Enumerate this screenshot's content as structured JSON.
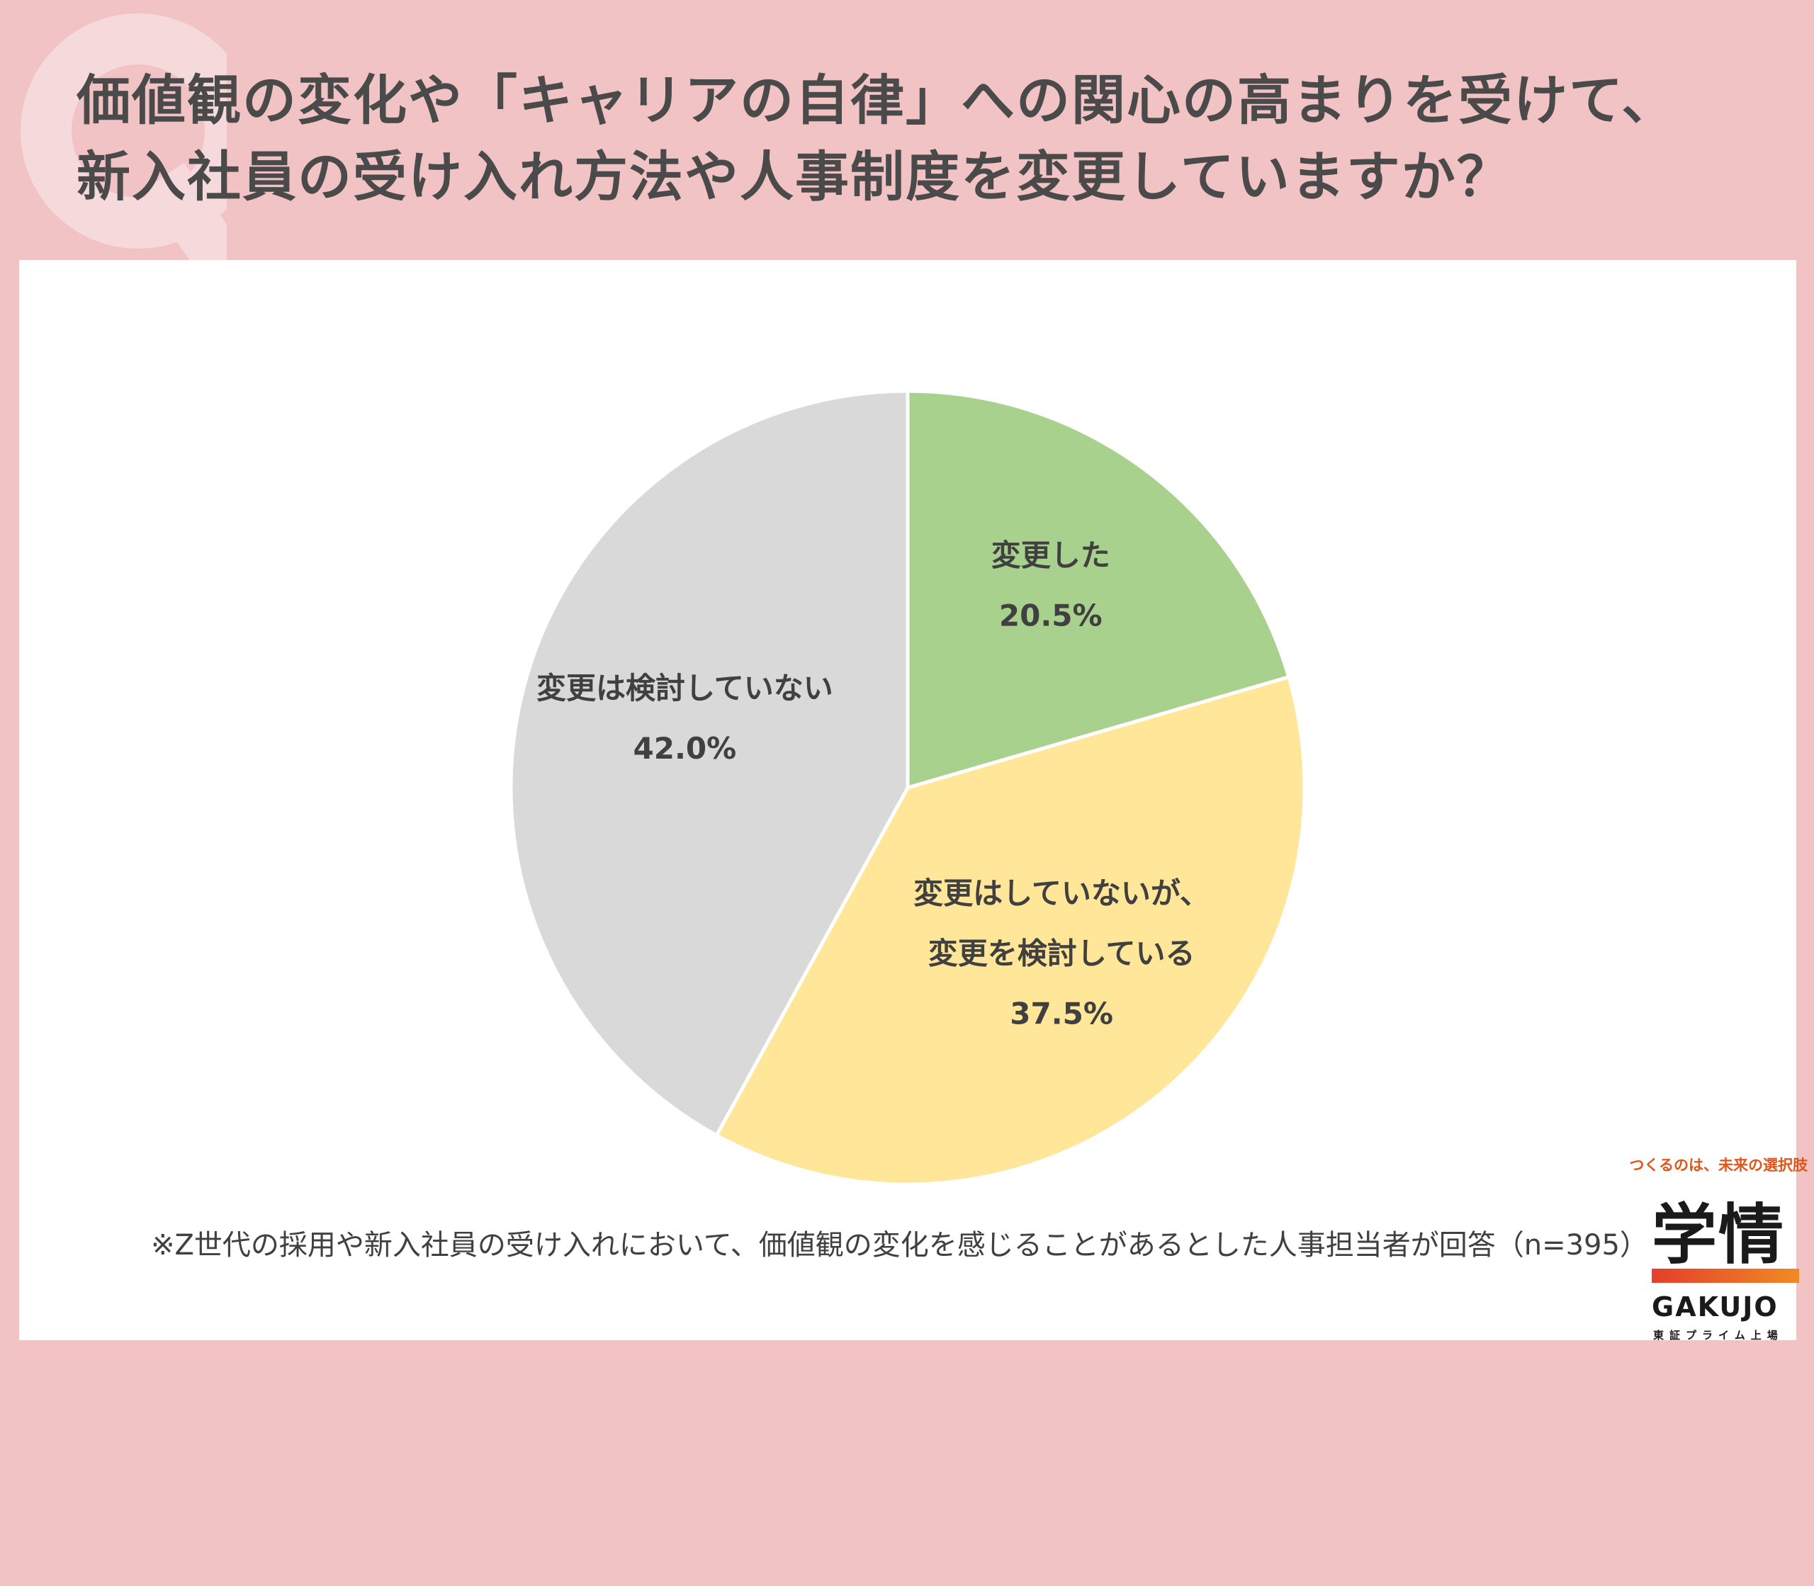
{
  "title": {
    "line1": "価値観の変化や「キャリアの自律」への関心の高まりを受けて、",
    "line2": "新入社員の受け入れ方法や人事制度を変更していますか？"
  },
  "colors": {
    "background": "#f2c3c4",
    "q_mark": "#f6dadb",
    "slice_changed": "#a9d18e",
    "slice_considering": "#ffe699",
    "slice_not_considering": "#d9d9d9"
  },
  "chart_data": {
    "type": "pie",
    "title": "",
    "start_angle_deg": 0,
    "direction": "clockwise",
    "slices": [
      {
        "label_lines": [
          "変更した"
        ],
        "value": 20.5,
        "value_label": "20.5%",
        "color": "#a9d18e"
      },
      {
        "label_lines": [
          "変更はしていないが、",
          "変更を検討している"
        ],
        "value": 37.5,
        "value_label": "37.5%",
        "color": "#ffe699"
      },
      {
        "label_lines": [
          "変更は検討していない"
        ],
        "value": 42.0,
        "value_label": "42.0%",
        "color": "#d9d9d9"
      }
    ]
  },
  "footnote": "※Z世代の採用や新入社員の受け入れにおいて、価値観の変化を感じることがあるとした人事担当者が回答（n=395）",
  "logo": {
    "tagline": "つくるのは、未来の選択肢",
    "kanji": "学情",
    "name": "GAKUJO",
    "sub": "東証プライム上場"
  }
}
